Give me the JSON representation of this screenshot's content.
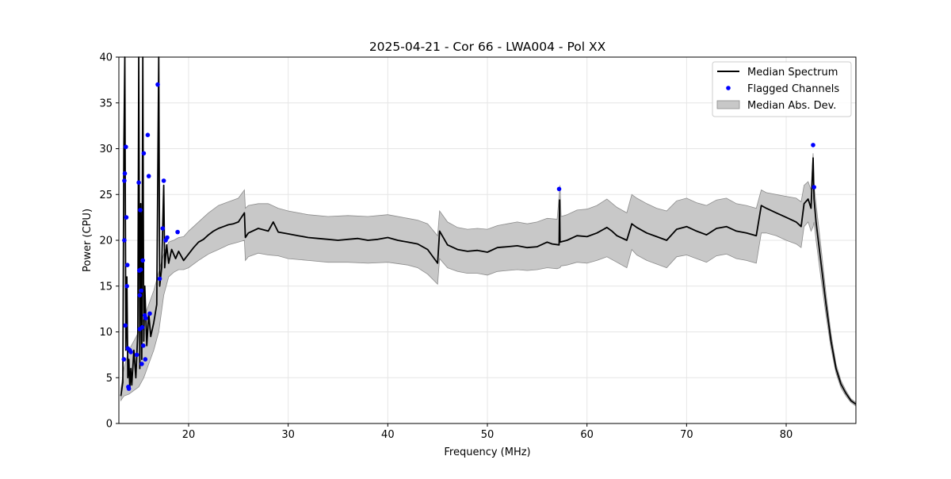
{
  "chart_data": {
    "type": "line",
    "title": "2025-04-21 - Cor 66 - LWA004 - Pol XX",
    "xlabel": "Frequency (MHz)",
    "ylabel": "Power (CPU)",
    "xlim": [
      13.0,
      87.0
    ],
    "ylim": [
      0,
      40
    ],
    "xticks": [
      20,
      30,
      40,
      50,
      60,
      70,
      80
    ],
    "yticks": [
      0,
      5,
      10,
      15,
      20,
      25,
      30,
      35,
      40
    ],
    "grid": true,
    "legend_position": "top-right",
    "colors": {
      "median": "#000000",
      "flagged": "#0000ff",
      "mad_fill": "#c8c8c8",
      "mad_edge": "#8c8c8c",
      "grid": "#e6e6e6"
    },
    "series": [
      {
        "name": "Median Spectrum",
        "kind": "line",
        "points": [
          [
            13.2,
            3.0
          ],
          [
            13.4,
            4.5
          ],
          [
            13.5,
            30.0
          ],
          [
            13.6,
            40.0
          ],
          [
            13.7,
            8.0
          ],
          [
            13.8,
            16.0
          ],
          [
            13.9,
            5.0
          ],
          [
            14.0,
            7.0
          ],
          [
            14.1,
            3.8
          ],
          [
            14.2,
            6.0
          ],
          [
            14.3,
            4.2
          ],
          [
            14.5,
            8.0
          ],
          [
            14.7,
            5.0
          ],
          [
            14.9,
            10.0
          ],
          [
            15.0,
            40.0
          ],
          [
            15.1,
            6.0
          ],
          [
            15.2,
            24.0
          ],
          [
            15.3,
            7.0
          ],
          [
            15.4,
            40.0
          ],
          [
            15.5,
            9.0
          ],
          [
            15.6,
            15.0
          ],
          [
            15.8,
            8.5
          ],
          [
            16.0,
            12.0
          ],
          [
            16.2,
            9.5
          ],
          [
            16.5,
            11.0
          ],
          [
            16.8,
            13.0
          ],
          [
            17.0,
            40.0
          ],
          [
            17.1,
            15.0
          ],
          [
            17.3,
            17.0
          ],
          [
            17.5,
            26.0
          ],
          [
            17.6,
            17.0
          ],
          [
            17.8,
            19.5
          ],
          [
            18.0,
            17.5
          ],
          [
            18.3,
            19.0
          ],
          [
            18.7,
            18.0
          ],
          [
            19.0,
            18.8
          ],
          [
            19.5,
            17.8
          ],
          [
            20.0,
            18.5
          ],
          [
            20.5,
            19.2
          ],
          [
            21.0,
            19.8
          ],
          [
            21.5,
            20.1
          ],
          [
            22.0,
            20.6
          ],
          [
            22.5,
            21.0
          ],
          [
            23.0,
            21.3
          ],
          [
            23.5,
            21.5
          ],
          [
            24.0,
            21.7
          ],
          [
            24.5,
            21.8
          ],
          [
            25.0,
            22.0
          ],
          [
            25.6,
            23.0
          ],
          [
            25.7,
            20.3
          ],
          [
            26.0,
            20.8
          ],
          [
            27.0,
            21.3
          ],
          [
            28.0,
            21.0
          ],
          [
            28.5,
            22.0
          ],
          [
            29.0,
            20.9
          ],
          [
            30.0,
            20.7
          ],
          [
            31.0,
            20.5
          ],
          [
            32.0,
            20.3
          ],
          [
            33.0,
            20.2
          ],
          [
            34.0,
            20.1
          ],
          [
            35.0,
            20.0
          ],
          [
            36.0,
            20.1
          ],
          [
            37.0,
            20.2
          ],
          [
            38.0,
            20.0
          ],
          [
            39.0,
            20.1
          ],
          [
            40.0,
            20.3
          ],
          [
            41.0,
            20.0
          ],
          [
            42.0,
            19.8
          ],
          [
            43.0,
            19.6
          ],
          [
            44.0,
            19.0
          ],
          [
            45.0,
            17.5
          ],
          [
            45.2,
            21.0
          ],
          [
            46.0,
            19.5
          ],
          [
            47.0,
            19.0
          ],
          [
            48.0,
            18.8
          ],
          [
            49.0,
            18.9
          ],
          [
            50.0,
            18.7
          ],
          [
            51.0,
            19.2
          ],
          [
            52.0,
            19.3
          ],
          [
            53.0,
            19.4
          ],
          [
            54.0,
            19.2
          ],
          [
            55.0,
            19.3
          ],
          [
            56.0,
            19.8
          ],
          [
            56.5,
            19.6
          ],
          [
            57.2,
            19.5
          ],
          [
            57.25,
            24.4
          ],
          [
            57.3,
            19.8
          ],
          [
            58.0,
            20.0
          ],
          [
            59.0,
            20.5
          ],
          [
            60.0,
            20.4
          ],
          [
            61.0,
            20.8
          ],
          [
            62.0,
            21.4
          ],
          [
            62.5,
            21.0
          ],
          [
            63.0,
            20.5
          ],
          [
            64.0,
            20.0
          ],
          [
            64.5,
            21.8
          ],
          [
            65.0,
            21.4
          ],
          [
            66.0,
            20.8
          ],
          [
            67.0,
            20.4
          ],
          [
            68.0,
            20.0
          ],
          [
            69.0,
            21.2
          ],
          [
            70.0,
            21.5
          ],
          [
            71.0,
            21.0
          ],
          [
            72.0,
            20.6
          ],
          [
            73.0,
            21.3
          ],
          [
            74.0,
            21.5
          ],
          [
            75.0,
            21.0
          ],
          [
            76.0,
            20.8
          ],
          [
            77.0,
            20.5
          ],
          [
            77.5,
            23.8
          ],
          [
            78.0,
            23.5
          ],
          [
            79.0,
            23.0
          ],
          [
            80.0,
            22.5
          ],
          [
            81.0,
            22.0
          ],
          [
            81.5,
            21.5
          ],
          [
            81.8,
            24.0
          ],
          [
            82.2,
            24.5
          ],
          [
            82.5,
            23.5
          ],
          [
            82.7,
            29.0
          ],
          [
            82.8,
            24.5
          ],
          [
            83.0,
            22.0
          ],
          [
            83.5,
            17.5
          ],
          [
            84.0,
            13.0
          ],
          [
            84.5,
            9.0
          ],
          [
            85.0,
            6.0
          ],
          [
            85.5,
            4.3
          ],
          [
            86.0,
            3.3
          ],
          [
            86.5,
            2.5
          ],
          [
            87.0,
            2.1
          ]
        ]
      },
      {
        "name": "Flagged Channels",
        "kind": "scatter",
        "points": [
          [
            13.5,
            7.0
          ],
          [
            13.55,
            20.0
          ],
          [
            13.55,
            26.5
          ],
          [
            13.6,
            27.3
          ],
          [
            13.65,
            10.7
          ],
          [
            13.7,
            30.2
          ],
          [
            13.75,
            22.5
          ],
          [
            13.8,
            15.0
          ],
          [
            13.85,
            17.3
          ],
          [
            13.9,
            8.2
          ],
          [
            13.95,
            4.0
          ],
          [
            14.0,
            3.8
          ],
          [
            14.1,
            8.0
          ],
          [
            14.2,
            7.8
          ],
          [
            14.8,
            7.5
          ],
          [
            15.0,
            26.3
          ],
          [
            15.05,
            16.7
          ],
          [
            15.1,
            14.0
          ],
          [
            15.1,
            10.3
          ],
          [
            15.15,
            23.3
          ],
          [
            15.2,
            16.8
          ],
          [
            15.25,
            14.5
          ],
          [
            15.3,
            6.5
          ],
          [
            15.35,
            10.5
          ],
          [
            15.4,
            17.8
          ],
          [
            15.45,
            8.5
          ],
          [
            15.5,
            29.5
          ],
          [
            15.6,
            11.8
          ],
          [
            15.65,
            7.0
          ],
          [
            15.7,
            11.5
          ],
          [
            15.9,
            31.5
          ],
          [
            16.0,
            27.0
          ],
          [
            16.1,
            12.0
          ],
          [
            16.9,
            37.0
          ],
          [
            17.1,
            15.8
          ],
          [
            17.4,
            21.3
          ],
          [
            17.5,
            26.5
          ],
          [
            17.7,
            20.0
          ],
          [
            17.85,
            20.3
          ],
          [
            18.9,
            20.9
          ],
          [
            57.2,
            25.6
          ],
          [
            82.7,
            30.4
          ],
          [
            82.8,
            25.8
          ]
        ]
      },
      {
        "name": "Median Abs. Dev.",
        "kind": "band",
        "points": [
          [
            13.2,
            2.5,
            3.8
          ],
          [
            13.5,
            3.0,
            6.0
          ],
          [
            14.0,
            3.2,
            8.0
          ],
          [
            14.5,
            3.6,
            9.0
          ],
          [
            15.0,
            4.0,
            10.0
          ],
          [
            15.5,
            5.0,
            11.5
          ],
          [
            16.0,
            6.5,
            13.0
          ],
          [
            16.5,
            8.0,
            14.5
          ],
          [
            17.0,
            10.0,
            16.5
          ],
          [
            17.5,
            14.0,
            18.5
          ],
          [
            18.0,
            16.0,
            19.8
          ],
          [
            18.5,
            16.5,
            20.0
          ],
          [
            19.0,
            16.8,
            20.3
          ],
          [
            19.5,
            16.8,
            20.4
          ],
          [
            20.0,
            17.0,
            21.0
          ],
          [
            21.0,
            17.8,
            22.0
          ],
          [
            22.0,
            18.5,
            23.0
          ],
          [
            23.0,
            19.0,
            23.8
          ],
          [
            24.0,
            19.5,
            24.2
          ],
          [
            25.0,
            19.8,
            24.6
          ],
          [
            25.6,
            20.0,
            25.5
          ],
          [
            25.7,
            17.8,
            23.5
          ],
          [
            26.0,
            18.2,
            23.8
          ],
          [
            27.0,
            18.6,
            24.0
          ],
          [
            28.0,
            18.4,
            24.0
          ],
          [
            29.0,
            18.3,
            23.5
          ],
          [
            30.0,
            18.0,
            23.2
          ],
          [
            32.0,
            17.8,
            22.8
          ],
          [
            34.0,
            17.6,
            22.6
          ],
          [
            36.0,
            17.6,
            22.7
          ],
          [
            38.0,
            17.5,
            22.6
          ],
          [
            40.0,
            17.6,
            22.8
          ],
          [
            42.0,
            17.3,
            22.4
          ],
          [
            43.0,
            17.0,
            22.2
          ],
          [
            44.0,
            16.3,
            21.8
          ],
          [
            45.0,
            15.2,
            20.5
          ],
          [
            45.2,
            18.0,
            23.2
          ],
          [
            46.0,
            17.0,
            22.0
          ],
          [
            47.0,
            16.6,
            21.4
          ],
          [
            48.0,
            16.4,
            21.2
          ],
          [
            49.0,
            16.4,
            21.3
          ],
          [
            50.0,
            16.2,
            21.2
          ],
          [
            51.0,
            16.6,
            21.6
          ],
          [
            52.0,
            16.7,
            21.8
          ],
          [
            53.0,
            16.8,
            22.0
          ],
          [
            54.0,
            16.7,
            21.8
          ],
          [
            55.0,
            16.8,
            22.0
          ],
          [
            56.0,
            17.0,
            22.4
          ],
          [
            57.0,
            16.9,
            22.3
          ],
          [
            57.3,
            17.0,
            26.0
          ],
          [
            57.4,
            17.2,
            22.6
          ],
          [
            58.0,
            17.3,
            22.8
          ],
          [
            59.0,
            17.6,
            23.3
          ],
          [
            60.0,
            17.5,
            23.4
          ],
          [
            61.0,
            17.8,
            23.8
          ],
          [
            62.0,
            18.2,
            24.5
          ],
          [
            63.0,
            17.6,
            23.6
          ],
          [
            64.0,
            17.0,
            23.0
          ],
          [
            64.5,
            19.0,
            25.0
          ],
          [
            65.0,
            18.4,
            24.6
          ],
          [
            66.0,
            17.8,
            24.0
          ],
          [
            67.0,
            17.4,
            23.5
          ],
          [
            68.0,
            17.0,
            23.2
          ],
          [
            69.0,
            18.2,
            24.3
          ],
          [
            70.0,
            18.4,
            24.6
          ],
          [
            71.0,
            18.0,
            24.1
          ],
          [
            72.0,
            17.6,
            23.8
          ],
          [
            73.0,
            18.3,
            24.4
          ],
          [
            74.0,
            18.5,
            24.6
          ],
          [
            75.0,
            18.0,
            24.0
          ],
          [
            76.0,
            17.8,
            23.8
          ],
          [
            77.0,
            17.5,
            23.5
          ],
          [
            77.5,
            20.8,
            25.5
          ],
          [
            78.0,
            20.8,
            25.2
          ],
          [
            79.0,
            20.5,
            25.0
          ],
          [
            80.0,
            20.0,
            24.8
          ],
          [
            81.0,
            19.6,
            24.6
          ],
          [
            81.5,
            19.2,
            24.2
          ],
          [
            81.8,
            21.5,
            26.0
          ],
          [
            82.2,
            22.0,
            26.4
          ],
          [
            82.5,
            21.0,
            25.5
          ],
          [
            82.7,
            21.5,
            29.5
          ],
          [
            82.8,
            22.0,
            26.0
          ],
          [
            83.0,
            20.0,
            24.0
          ],
          [
            83.5,
            15.8,
            19.2
          ],
          [
            84.0,
            11.8,
            14.2
          ],
          [
            84.5,
            8.2,
            9.8
          ],
          [
            85.0,
            5.5,
            6.5
          ],
          [
            85.5,
            3.9,
            4.7
          ],
          [
            86.0,
            3.0,
            3.6
          ],
          [
            86.5,
            2.3,
            2.7
          ],
          [
            87.0,
            1.9,
            2.3
          ]
        ]
      }
    ]
  }
}
